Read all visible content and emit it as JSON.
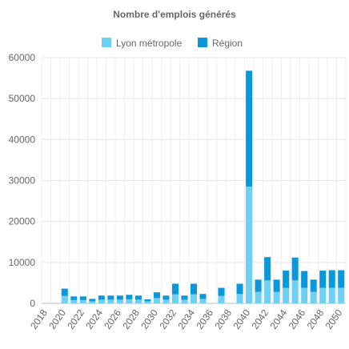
{
  "chart_data": {
    "type": "bar",
    "stacked": true,
    "title": "Nombre d'emplois générés",
    "legend_position": "top",
    "grid": true,
    "x": [
      2018,
      2019,
      2020,
      2021,
      2022,
      2023,
      2024,
      2025,
      2026,
      2027,
      2028,
      2029,
      2030,
      2031,
      2032,
      2033,
      2034,
      2035,
      2036,
      2037,
      2038,
      2039,
      2040,
      2041,
      2042,
      2043,
      2044,
      2045,
      2046,
      2047,
      2048,
      2049,
      2050
    ],
    "xtick_labels": [
      "2018",
      "2020",
      "2022",
      "2024",
      "2026",
      "2028",
      "2030",
      "2032",
      "2034",
      "2036",
      "2038",
      "2040",
      "2042",
      "2044",
      "2046",
      "2048",
      "2050"
    ],
    "ylim": [
      0,
      60000
    ],
    "ytick_labels": [
      "0",
      "10000",
      "20000",
      "30000",
      "40000",
      "50000",
      "60000"
    ],
    "series": [
      {
        "name": "Lyon métropole",
        "color": "#6fd0f6",
        "values": [
          0,
          0,
          1800,
          800,
          800,
          500,
          900,
          900,
          900,
          1000,
          900,
          500,
          1300,
          900,
          2200,
          900,
          2200,
          1100,
          0,
          1800,
          0,
          2300,
          28500,
          2800,
          5600,
          2800,
          3800,
          5600,
          3800,
          2800,
          3800,
          3800,
          3800
        ]
      },
      {
        "name": "Région",
        "color": "#0b97db",
        "values": [
          0,
          0,
          1800,
          900,
          900,
          600,
          1000,
          1000,
          1000,
          1100,
          1000,
          500,
          1400,
          1000,
          2600,
          1000,
          2600,
          1200,
          0,
          2000,
          0,
          2500,
          28300,
          3000,
          5700,
          3000,
          4200,
          5600,
          4100,
          3000,
          4200,
          4300,
          4300
        ]
      }
    ]
  }
}
